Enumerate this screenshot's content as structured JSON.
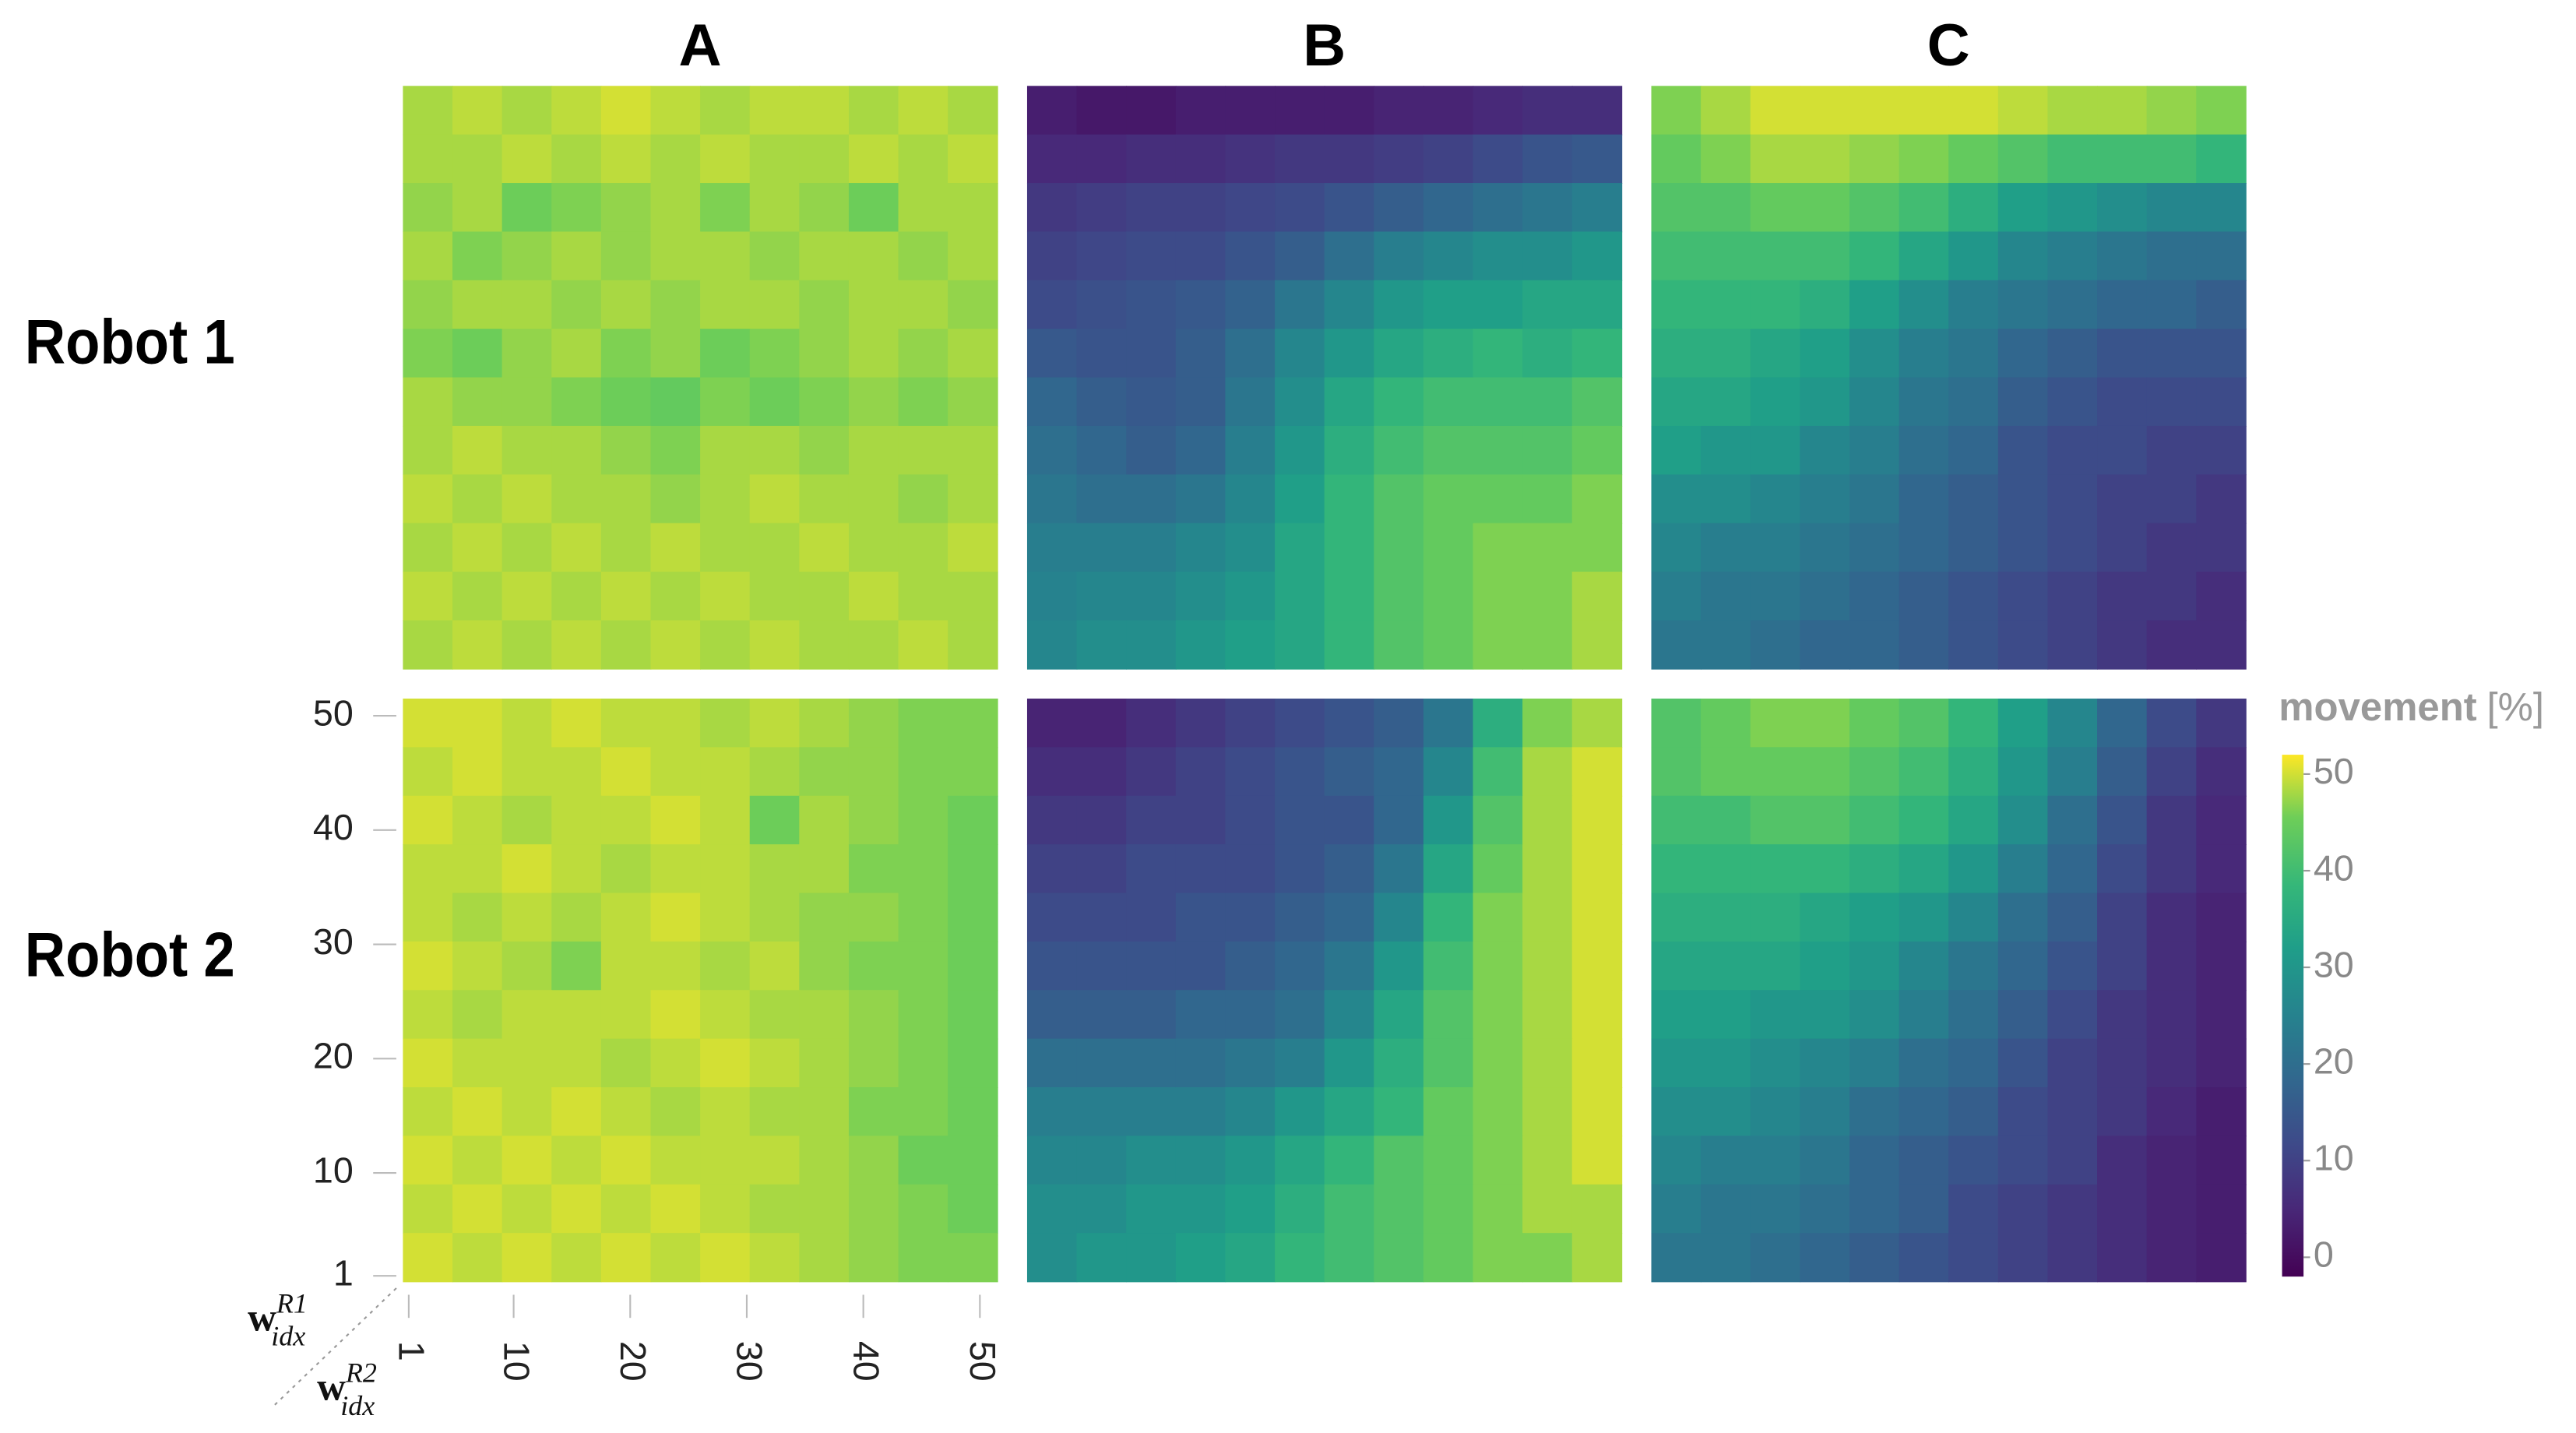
{
  "chart_data": {
    "type": "heatmap",
    "column_titles": [
      "A",
      "B",
      "C"
    ],
    "row_titles": [
      "Robot 1",
      "Robot 2"
    ],
    "xlabel": {
      "base": "w",
      "sup": "R1",
      "sub": "idx"
    },
    "ylabel": {
      "base": "w",
      "sup": "R2",
      "sub": "idx"
    },
    "xlim": [
      0.5,
      51.5
    ],
    "ylim": [
      0.5,
      51.5
    ],
    "xticks": [
      1,
      10,
      20,
      30,
      40,
      50
    ],
    "yticks": [
      1,
      10,
      20,
      30,
      40,
      50
    ],
    "colorbar": {
      "label": "movement",
      "unit": "[%]",
      "clim": [
        -2,
        52
      ],
      "ticks": [
        0,
        10,
        20,
        30,
        40,
        50
      ],
      "colormap": "viridis"
    },
    "panels": [
      {
        "values": [
          [
            48,
            49,
            48,
            49,
            50,
            49,
            48,
            49,
            49,
            48,
            49,
            48
          ],
          [
            48,
            48,
            49,
            48,
            49,
            48,
            49,
            48,
            48,
            49,
            48,
            49
          ],
          [
            47,
            48,
            45,
            46,
            47,
            48,
            46,
            48,
            47,
            45,
            48,
            48
          ],
          [
            48,
            46,
            47,
            48,
            47,
            48,
            48,
            47,
            48,
            48,
            47,
            48
          ],
          [
            47,
            48,
            48,
            47,
            48,
            47,
            48,
            48,
            47,
            48,
            48,
            47
          ],
          [
            46,
            45,
            47,
            48,
            46,
            47,
            45,
            46,
            47,
            48,
            47,
            48
          ],
          [
            48,
            47,
            47,
            46,
            45,
            44,
            46,
            45,
            46,
            47,
            46,
            47
          ],
          [
            48,
            49,
            48,
            48,
            47,
            46,
            48,
            48,
            47,
            48,
            48,
            48
          ],
          [
            49,
            48,
            49,
            48,
            48,
            47,
            48,
            49,
            48,
            48,
            47,
            48
          ],
          [
            48,
            49,
            48,
            49,
            48,
            49,
            48,
            48,
            49,
            48,
            48,
            49
          ],
          [
            49,
            48,
            49,
            48,
            49,
            48,
            49,
            48,
            48,
            49,
            48,
            48
          ],
          [
            48,
            49,
            48,
            49,
            48,
            49,
            48,
            49,
            48,
            48,
            49,
            48
          ]
        ]
      },
      {
        "values": [
          [
            3,
            2,
            2,
            3,
            3,
            3,
            3,
            4,
            4,
            5,
            6,
            6
          ],
          [
            5,
            5,
            6,
            6,
            7,
            8,
            8,
            9,
            10,
            12,
            14,
            15
          ],
          [
            8,
            9,
            10,
            10,
            11,
            12,
            14,
            16,
            18,
            20,
            22,
            24
          ],
          [
            10,
            11,
            12,
            12,
            14,
            16,
            20,
            24,
            26,
            28,
            28,
            30
          ],
          [
            12,
            13,
            14,
            15,
            17,
            22,
            26,
            30,
            32,
            32,
            34,
            34
          ],
          [
            15,
            14,
            14,
            16,
            20,
            26,
            30,
            34,
            36,
            38,
            36,
            38
          ],
          [
            18,
            16,
            15,
            16,
            22,
            28,
            34,
            38,
            40,
            40,
            40,
            42
          ],
          [
            20,
            18,
            16,
            18,
            24,
            30,
            36,
            40,
            42,
            42,
            42,
            44
          ],
          [
            22,
            20,
            20,
            22,
            26,
            32,
            38,
            42,
            44,
            44,
            44,
            46
          ],
          [
            24,
            24,
            24,
            26,
            28,
            34,
            38,
            42,
            44,
            46,
            46,
            46
          ],
          [
            25,
            26,
            26,
            28,
            30,
            34,
            38,
            42,
            44,
            46,
            46,
            48
          ],
          [
            26,
            28,
            28,
            30,
            32,
            34,
            38,
            42,
            44,
            46,
            46,
            48
          ]
        ]
      },
      {
        "values": [
          [
            46,
            48,
            50,
            50,
            50,
            50,
            50,
            49,
            48,
            48,
            47,
            46
          ],
          [
            44,
            46,
            48,
            48,
            47,
            46,
            44,
            42,
            40,
            40,
            40,
            38
          ],
          [
            42,
            42,
            44,
            44,
            42,
            40,
            36,
            32,
            30,
            28,
            26,
            26
          ],
          [
            40,
            40,
            40,
            40,
            38,
            34,
            30,
            26,
            24,
            22,
            20,
            20
          ],
          [
            38,
            38,
            38,
            36,
            32,
            28,
            24,
            22,
            20,
            18,
            18,
            16
          ],
          [
            36,
            36,
            34,
            32,
            28,
            24,
            22,
            18,
            16,
            14,
            14,
            14
          ],
          [
            34,
            34,
            32,
            30,
            26,
            22,
            20,
            16,
            14,
            12,
            12,
            12
          ],
          [
            32,
            30,
            30,
            26,
            24,
            20,
            18,
            14,
            12,
            12,
            10,
            10
          ],
          [
            28,
            28,
            26,
            24,
            22,
            18,
            16,
            14,
            12,
            10,
            10,
            8
          ],
          [
            26,
            24,
            24,
            22,
            20,
            18,
            16,
            14,
            12,
            10,
            8,
            8
          ],
          [
            24,
            22,
            22,
            20,
            18,
            16,
            14,
            12,
            10,
            8,
            8,
            6
          ],
          [
            22,
            22,
            20,
            18,
            18,
            16,
            14,
            12,
            10,
            8,
            6,
            6
          ]
        ]
      },
      {
        "values": [
          [
            50,
            50,
            49,
            50,
            49,
            49,
            48,
            49,
            48,
            47,
            46,
            46
          ],
          [
            49,
            50,
            49,
            49,
            50,
            49,
            49,
            48,
            47,
            47,
            46,
            46
          ],
          [
            50,
            49,
            48,
            49,
            49,
            50,
            49,
            45,
            48,
            47,
            46,
            45
          ],
          [
            49,
            49,
            50,
            49,
            48,
            49,
            49,
            48,
            48,
            46,
            46,
            45
          ],
          [
            49,
            48,
            49,
            48,
            49,
            50,
            49,
            48,
            47,
            47,
            46,
            45
          ],
          [
            50,
            49,
            48,
            46,
            49,
            49,
            48,
            49,
            47,
            46,
            46,
            45
          ],
          [
            49,
            48,
            49,
            49,
            49,
            50,
            49,
            48,
            48,
            47,
            46,
            45
          ],
          [
            50,
            49,
            49,
            49,
            48,
            49,
            50,
            49,
            48,
            47,
            46,
            45
          ],
          [
            49,
            50,
            49,
            50,
            49,
            48,
            49,
            48,
            48,
            46,
            46,
            45
          ],
          [
            50,
            49,
            50,
            49,
            50,
            49,
            49,
            49,
            48,
            47,
            45,
            45
          ],
          [
            49,
            50,
            49,
            50,
            49,
            50,
            49,
            48,
            48,
            47,
            46,
            45
          ],
          [
            50,
            49,
            50,
            49,
            50,
            49,
            50,
            49,
            48,
            47,
            46,
            46
          ]
        ]
      },
      {
        "values": [
          [
            4,
            4,
            6,
            8,
            10,
            12,
            14,
            16,
            22,
            36,
            46,
            48
          ],
          [
            6,
            6,
            8,
            10,
            12,
            14,
            16,
            18,
            26,
            40,
            48,
            50
          ],
          [
            8,
            8,
            10,
            10,
            12,
            14,
            14,
            18,
            30,
            42,
            48,
            50
          ],
          [
            10,
            10,
            12,
            12,
            12,
            14,
            16,
            22,
            34,
            44,
            48,
            50
          ],
          [
            12,
            12,
            12,
            14,
            14,
            16,
            18,
            26,
            38,
            46,
            48,
            50
          ],
          [
            14,
            14,
            14,
            14,
            16,
            18,
            22,
            30,
            40,
            46,
            48,
            50
          ],
          [
            16,
            16,
            16,
            18,
            18,
            20,
            26,
            34,
            42,
            46,
            48,
            50
          ],
          [
            20,
            20,
            20,
            20,
            22,
            24,
            30,
            36,
            42,
            46,
            48,
            50
          ],
          [
            24,
            24,
            24,
            24,
            26,
            30,
            34,
            38,
            44,
            46,
            48,
            50
          ],
          [
            26,
            26,
            28,
            28,
            30,
            34,
            38,
            42,
            44,
            46,
            48,
            50
          ],
          [
            28,
            28,
            30,
            30,
            32,
            36,
            40,
            42,
            44,
            46,
            48,
            48
          ],
          [
            28,
            30,
            30,
            32,
            34,
            38,
            40,
            42,
            44,
            46,
            46,
            48
          ]
        ]
      },
      {
        "values": [
          [
            42,
            44,
            46,
            46,
            44,
            42,
            38,
            32,
            26,
            18,
            12,
            8
          ],
          [
            42,
            44,
            44,
            44,
            42,
            40,
            36,
            30,
            24,
            16,
            10,
            6
          ],
          [
            40,
            40,
            42,
            42,
            40,
            38,
            34,
            28,
            20,
            14,
            8,
            5
          ],
          [
            38,
            38,
            38,
            38,
            36,
            34,
            30,
            24,
            18,
            12,
            8,
            5
          ],
          [
            36,
            36,
            36,
            34,
            32,
            30,
            26,
            20,
            16,
            10,
            6,
            4
          ],
          [
            34,
            34,
            34,
            32,
            30,
            26,
            22,
            18,
            14,
            10,
            6,
            4
          ],
          [
            32,
            32,
            30,
            30,
            28,
            24,
            20,
            16,
            12,
            8,
            6,
            4
          ],
          [
            30,
            30,
            28,
            26,
            24,
            20,
            18,
            14,
            10,
            8,
            6,
            4
          ],
          [
            28,
            28,
            26,
            24,
            20,
            18,
            16,
            12,
            10,
            8,
            5,
            3
          ],
          [
            26,
            24,
            24,
            22,
            18,
            16,
            14,
            12,
            10,
            6,
            4,
            3
          ],
          [
            24,
            22,
            22,
            20,
            18,
            16,
            12,
            10,
            8,
            6,
            4,
            3
          ],
          [
            22,
            22,
            20,
            18,
            16,
            14,
            12,
            10,
            8,
            6,
            4,
            3
          ]
        ]
      }
    ]
  }
}
